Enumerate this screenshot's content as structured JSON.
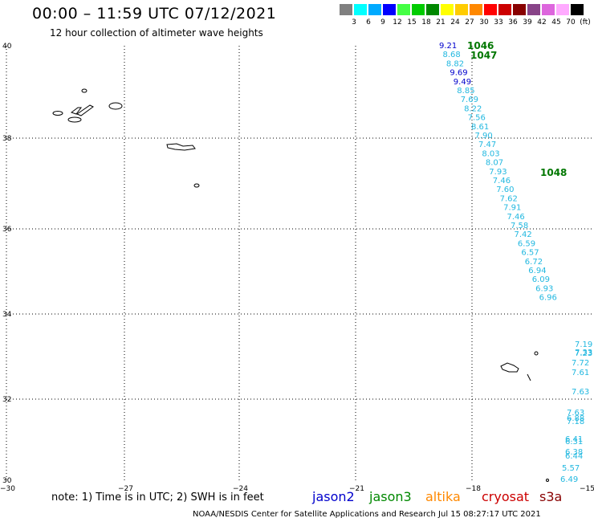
{
  "header": {
    "title": "00:00 – 11:59 UTC 07/12/2021",
    "subtitle": "12 hour collection of altimeter wave heights"
  },
  "color_scale": {
    "labels": [
      "3",
      "6",
      "9",
      "12",
      "15",
      "18",
      "21",
      "24",
      "27",
      "30",
      "33",
      "36",
      "39",
      "42",
      "45",
      "70",
      "(ft)"
    ],
    "colors": [
      "#808080",
      "#00ffff",
      "#00aaff",
      "#0000ff",
      "#44ff44",
      "#00cc00",
      "#008800",
      "#ffff00",
      "#ffcc00",
      "#ff8800",
      "#ff0000",
      "#cc0000",
      "#880000",
      "#884488",
      "#dd66dd",
      "#ffaaff",
      "#000000"
    ]
  },
  "axes": {
    "lat_labels": [
      "40",
      "38",
      "36",
      "34",
      "32",
      "30"
    ],
    "lon_labels": [
      "−30",
      "−27",
      "−24",
      "−21",
      "−18",
      "−15"
    ]
  },
  "obs_blue": [
    "9.21",
    "8.68",
    "8.82",
    "9.69",
    "9.49",
    "8.85",
    "7.69",
    "8.22",
    "7.56",
    "8.61",
    "7.90",
    "7.47",
    "8.03",
    "8.07",
    "7.93",
    "7.46",
    "7.60",
    "7.62",
    "7.91",
    "7.46",
    "7.58",
    "7.42",
    "6.59",
    "6.57",
    "6.72",
    "6.94",
    "6.09",
    "6.93",
    "6.96"
  ],
  "obs_green": [
    "1046",
    "1047",
    "1048"
  ],
  "obs_right": [
    "7.19",
    "7.33",
    "7.23",
    "7.72",
    "7.61",
    "7.63",
    "7.63",
    "6.88",
    "7.18",
    "6.41",
    "6.31",
    "6.38",
    "6.44",
    "5.57",
    "6.49"
  ],
  "footer": {
    "note": "note: 1) Time is in UTC; 2) SWH is in feet",
    "credit": "NOAA/NESDIS Center for Satellite Applications and Research   Jul 15 08:27:17 UTC 2021"
  },
  "satellites": [
    {
      "name": "jason2",
      "color": "#0000cc"
    },
    {
      "name": "jason3",
      "color": "#008800"
    },
    {
      "name": "altika",
      "color": "#ff8800"
    },
    {
      "name": "cryosat",
      "color": "#cc0000"
    },
    {
      "name": "s3a",
      "color": "#880000"
    }
  ]
}
